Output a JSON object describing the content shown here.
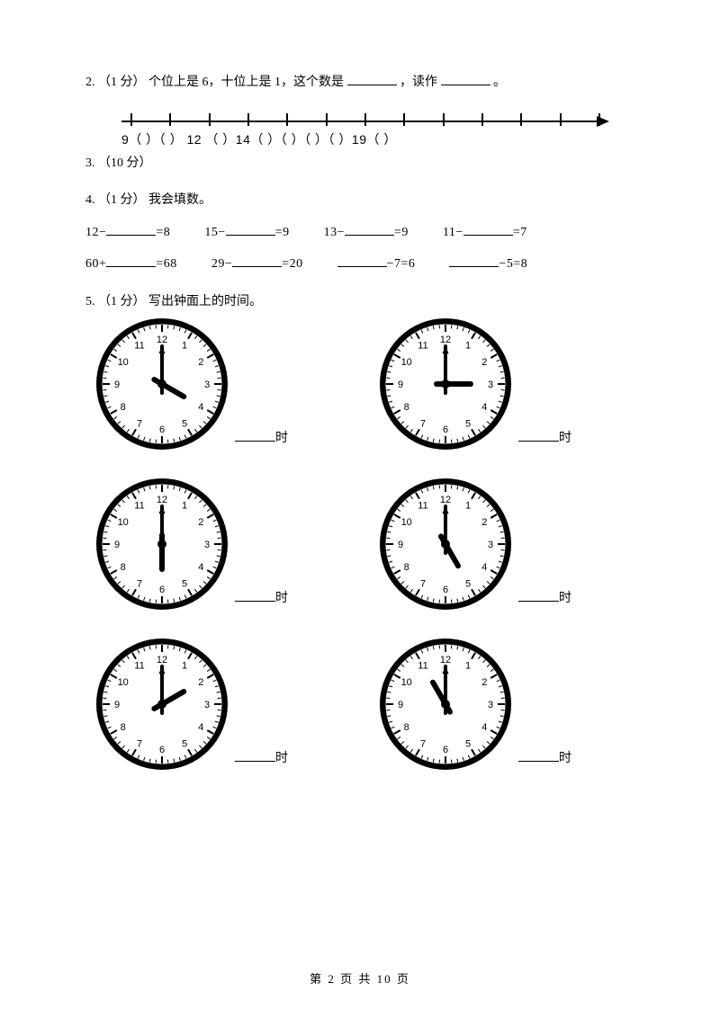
{
  "q2": {
    "num": "2.",
    "pts": "（1 分）",
    "text_a": "个位上是 6，十位上是 1，这个数是",
    "text_b": "，读作",
    "text_c": " 。"
  },
  "q3": {
    "num": "3.",
    "pts": "（10 分）"
  },
  "numberline": {
    "start": 10,
    "count": 13,
    "labels_text": "9（ ）（  ） 12 （  ）14（  ）（  ）（  ）（  ）19（  ）"
  },
  "q4": {
    "num": "4.",
    "pts": "（1 分）",
    "text": "我会填数。",
    "row1": [
      {
        "left": "12−",
        "blank": true,
        "right": "=8"
      },
      {
        "left": "15−",
        "blank": true,
        "right": "=9"
      },
      {
        "left": "13−",
        "blank": true,
        "right": "=9"
      },
      {
        "left": "11−",
        "blank": true,
        "right": "=7"
      }
    ],
    "row2": [
      {
        "left": "60+",
        "blank": true,
        "right": "=68"
      },
      {
        "left": "29−",
        "blank": true,
        "right": "=20"
      },
      {
        "left": "",
        "blank": true,
        "right": "−7=6"
      },
      {
        "left": "",
        "blank": true,
        "right": "−5=8"
      }
    ]
  },
  "q5": {
    "num": "5.",
    "pts": "（1 分）",
    "text": "写出钟面上的时间。",
    "label_suffix": "时",
    "clocks": [
      {
        "hour": 4,
        "minute": 0
      },
      {
        "hour": 3,
        "minute": 0
      },
      {
        "hour": 6,
        "minute": 0
      },
      {
        "hour": 5,
        "minute": 0
      },
      {
        "hour": 2,
        "minute": 0
      },
      {
        "hour": 11,
        "minute": 0
      }
    ],
    "clock_style": {
      "outer_stroke": "#000",
      "outer_width": 6,
      "tick_major_len": 8,
      "tick_minor_len": 4,
      "num_font": 11,
      "hour_len": 28,
      "hour_w": 6,
      "min_len": 42,
      "min_w": 4,
      "hub_r": 5
    }
  },
  "footer": {
    "text": "第 2 页 共 10 页"
  }
}
